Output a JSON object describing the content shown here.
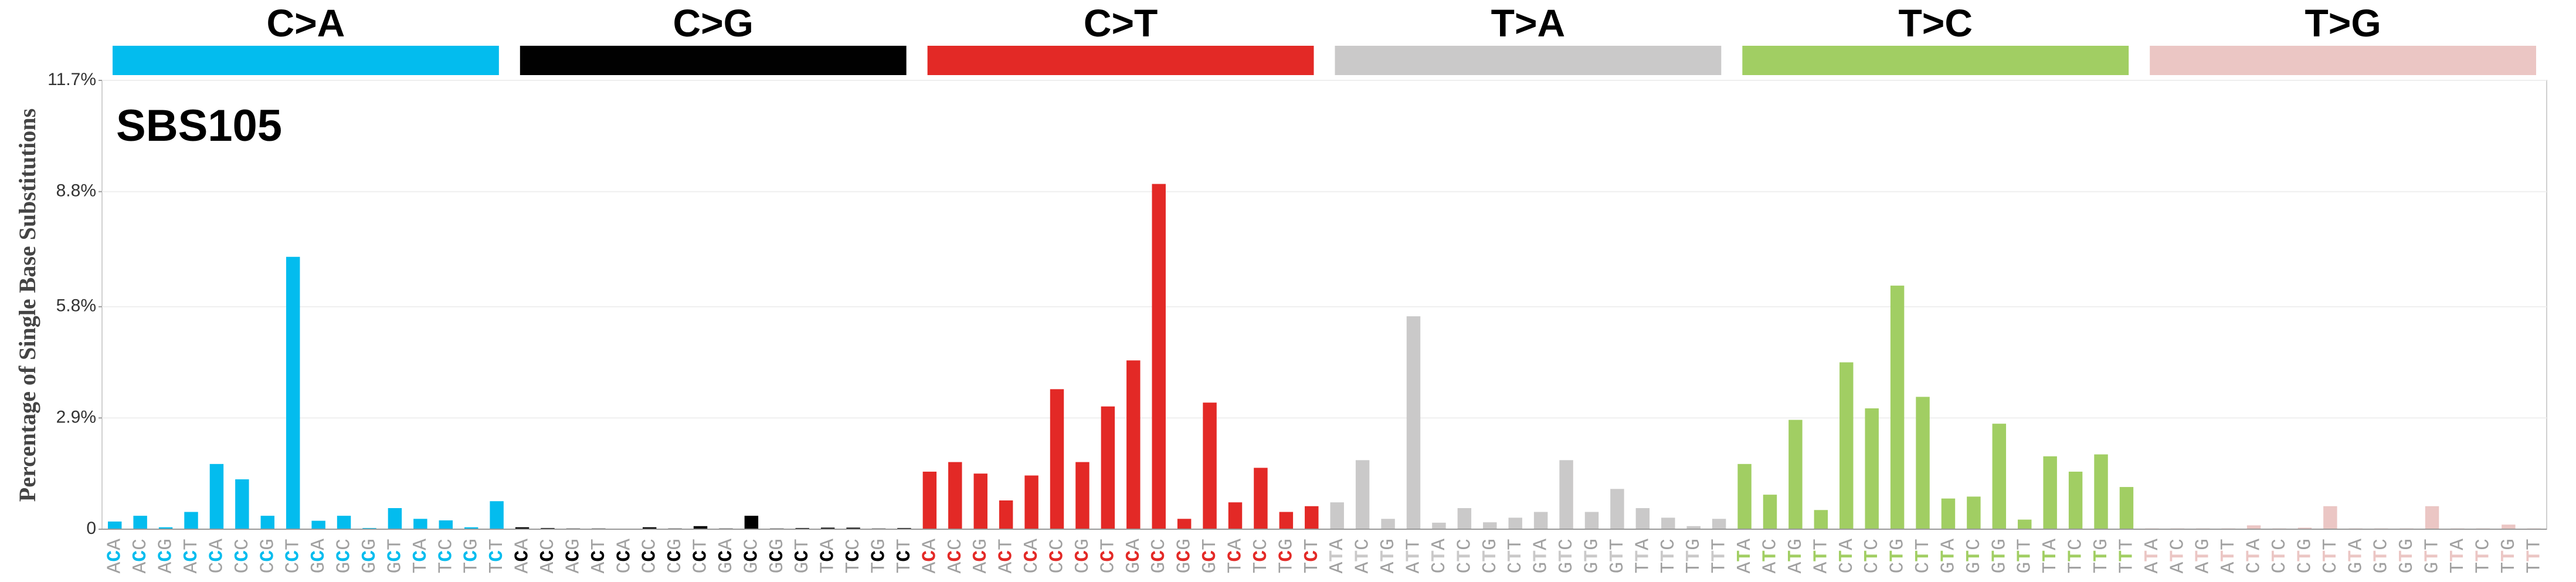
{
  "chart_data": {
    "type": "bar",
    "title": "SBS105",
    "ylabel": "Percentage of Single Base Substitutions",
    "groups": [
      {
        "name": "C>A",
        "color": "#03bcee"
      },
      {
        "name": "C>G",
        "color": "#010101"
      },
      {
        "name": "C>T",
        "color": "#e32926"
      },
      {
        "name": "T>A",
        "color": "#cac9c9"
      },
      {
        "name": "T>C",
        "color": "#a1ce63"
      },
      {
        "name": "T>G",
        "color": "#ebc6c4"
      }
    ],
    "categories": [
      "ACA",
      "ACC",
      "ACG",
      "ACT",
      "CCA",
      "CCC",
      "CCG",
      "CCT",
      "GCA",
      "GCC",
      "GCG",
      "GCT",
      "TCA",
      "TCC",
      "TCG",
      "TCT",
      "ACA",
      "ACC",
      "ACG",
      "ACT",
      "CCA",
      "CCC",
      "CCG",
      "CCT",
      "GCA",
      "GCC",
      "GCG",
      "GCT",
      "TCA",
      "TCC",
      "TCG",
      "TCT",
      "ACA",
      "ACC",
      "ACG",
      "ACT",
      "CCA",
      "CCC",
      "CCG",
      "CCT",
      "GCA",
      "GCC",
      "GCG",
      "GCT",
      "TCA",
      "TCC",
      "TCG",
      "TCT",
      "ATA",
      "ATC",
      "ATG",
      "ATT",
      "CTA",
      "CTC",
      "CTG",
      "CTT",
      "GTA",
      "GTC",
      "GTG",
      "GTT",
      "TTA",
      "TTC",
      "TTG",
      "TTT",
      "ATA",
      "ATC",
      "ATG",
      "ATT",
      "CTA",
      "CTC",
      "CTG",
      "CTT",
      "GTA",
      "GTC",
      "GTG",
      "GTT",
      "TTA",
      "TTC",
      "TTG",
      "TTT",
      "ATA",
      "ATC",
      "ATG",
      "ATT",
      "CTA",
      "CTC",
      "CTG",
      "CTT",
      "GTA",
      "GTC",
      "GTG",
      "GTT",
      "TTA",
      "TTC",
      "TTG",
      "TTT"
    ],
    "values": [
      0.2,
      0.35,
      0.05,
      0.45,
      1.7,
      1.3,
      0.35,
      7.1,
      0.22,
      0.35,
      0.03,
      0.55,
      0.27,
      0.23,
      0.05,
      0.73,
      0.05,
      0.03,
      0.02,
      0.02,
      0.01,
      0.05,
      0.02,
      0.08,
      0.02,
      0.35,
      0.02,
      0.03,
      0.04,
      0.04,
      0.02,
      0.03,
      1.5,
      1.75,
      1.45,
      0.75,
      1.4,
      3.65,
      1.75,
      3.2,
      4.4,
      9.0,
      0.27,
      3.3,
      0.7,
      1.6,
      0.45,
      0.6,
      0.7,
      1.8,
      0.27,
      5.55,
      0.17,
      0.55,
      0.18,
      0.3,
      0.45,
      1.8,
      0.45,
      1.05,
      0.55,
      0.3,
      0.08,
      0.27,
      1.7,
      0.9,
      2.85,
      0.5,
      4.35,
      3.15,
      6.35,
      3.45,
      0.8,
      0.85,
      2.75,
      0.25,
      1.9,
      1.5,
      1.95,
      1.1,
      0.02,
      0.02,
      0.02,
      0.02,
      0.1,
      0.02,
      0.04,
      0.6,
      0.02,
      0.02,
      0.02,
      0.6,
      0.02,
      0.02,
      0.12,
      0.02
    ],
    "ylim": [
      0,
      11.7
    ],
    "yticks": [
      {
        "value": 0,
        "label": "0"
      },
      {
        "value": 2.9,
        "label": "2.9%"
      },
      {
        "value": 5.8,
        "label": "5.8%"
      },
      {
        "value": 8.8,
        "label": "8.8%"
      },
      {
        "value": 11.7,
        "label": "11.7%"
      }
    ],
    "grid": true
  }
}
